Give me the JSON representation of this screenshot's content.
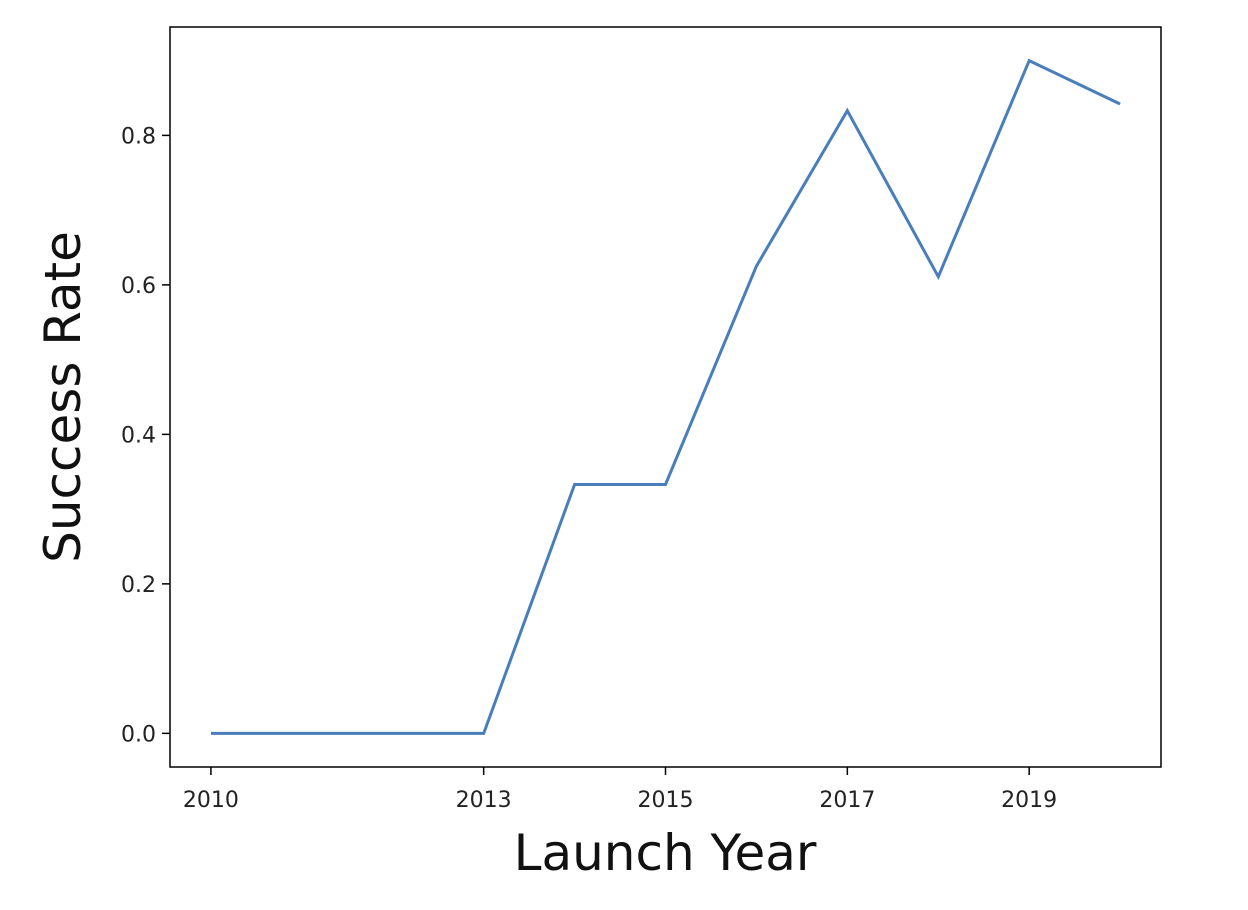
{
  "chart_data": {
    "type": "line",
    "title": "",
    "xlabel": "Launch Year",
    "ylabel": "Success Rate",
    "x": [
      "2010",
      "2012",
      "2013",
      "2014",
      "2015",
      "2016",
      "2017",
      "2018",
      "2019",
      "2020"
    ],
    "x_tick_labels": [
      "2010",
      "2013",
      "2015",
      "2017",
      "2019"
    ],
    "y_ticks": [
      0.0,
      0.2,
      0.4,
      0.6,
      0.8
    ],
    "y_tick_labels": [
      "0.0",
      "0.2",
      "0.4",
      "0.6",
      "0.8"
    ],
    "ylim": [
      -0.045,
      0.945
    ],
    "grid": false,
    "series": [
      {
        "values": [
          0.0,
          0.0,
          0.0,
          0.333,
          0.333,
          0.625,
          0.833,
          0.611,
          0.9,
          0.842
        ],
        "color": "#4a7ebb"
      }
    ]
  }
}
